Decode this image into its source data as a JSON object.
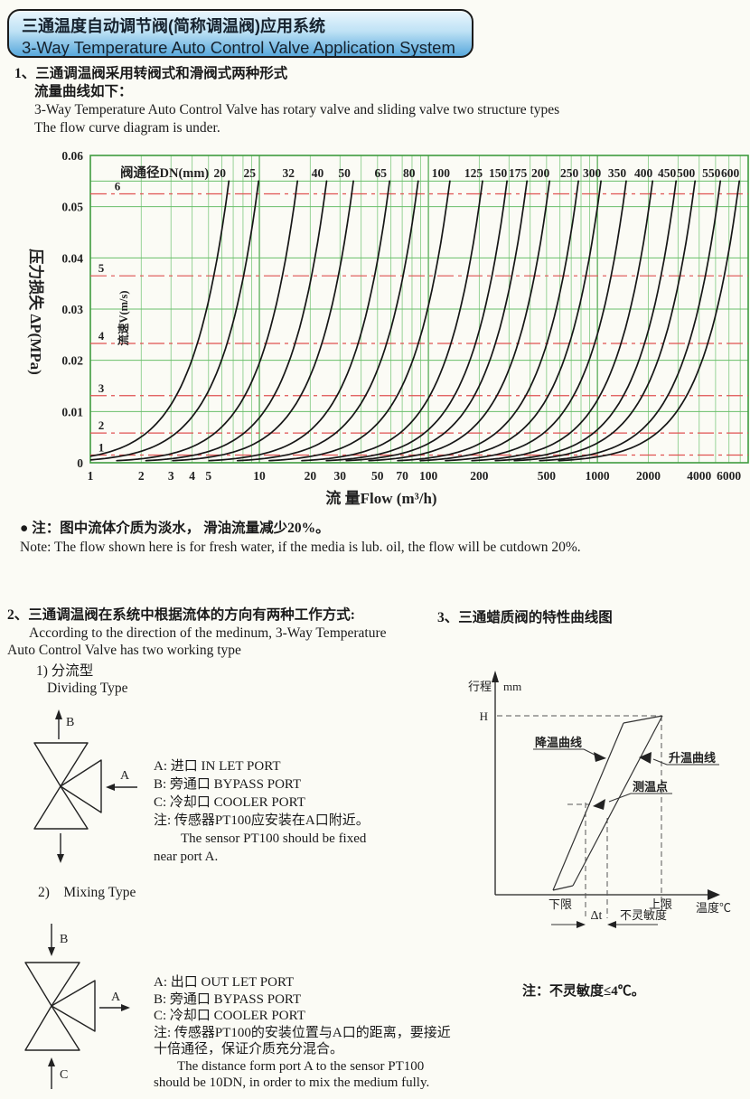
{
  "header": {
    "title_zh": "三通温度自动调节阀(简称调温阀)应用系统",
    "title_en": "3-Way Temperature Auto Control Valve Application System"
  },
  "section1": {
    "zh1": "1、三通调温阀采用转阀式和滑阀式两种形式",
    "zh2": "流量曲线如下：",
    "en1": "3-Way Temperature Auto Control Valve has rotary valve and sliding valve two structure types",
    "en2": "The flow curve diagram is under."
  },
  "chart_data": {
    "type": "line",
    "band_title": "阀通径DN(mm)",
    "xlabel": "流 量Flow (m³/h)",
    "ylabel": "压力损失 ΔP(MPa)",
    "velocity_axis_label": "流速V(m/s)",
    "x_ticks": [
      1,
      2,
      3,
      4,
      5,
      10,
      20,
      30,
      50,
      70,
      100,
      200,
      500,
      1000,
      2000,
      4000,
      6000
    ],
    "y_ticks": [
      0,
      0.01,
      0.02,
      0.03,
      0.04,
      0.05,
      0.06
    ],
    "x_range": [
      1,
      7800
    ],
    "y_range": [
      0,
      0.06
    ],
    "curve_top_dp": 0.055,
    "velocity_lines": [
      {
        "v": 1,
        "dp": 0.0015
      },
      {
        "v": 2,
        "dp": 0.0058
      },
      {
        "v": 3,
        "dp": 0.0131
      },
      {
        "v": 4,
        "dp": 0.0233
      },
      {
        "v": 5,
        "dp": 0.0365
      },
      {
        "v": 6,
        "dp": 0.0525
      }
    ],
    "series": [
      {
        "dn": 20,
        "q_max": 6.6
      },
      {
        "dn": 25,
        "q_max": 9.9
      },
      {
        "dn": 32,
        "q_max": 16.8
      },
      {
        "dn": 40,
        "q_max": 25
      },
      {
        "dn": 50,
        "q_max": 36
      },
      {
        "dn": 65,
        "q_max": 59
      },
      {
        "dn": 80,
        "q_max": 87
      },
      {
        "dn": 100,
        "q_max": 134
      },
      {
        "dn": 125,
        "q_max": 209
      },
      {
        "dn": 150,
        "q_max": 292
      },
      {
        "dn": 175,
        "q_max": 383
      },
      {
        "dn": 200,
        "q_max": 521
      },
      {
        "dn": 250,
        "q_max": 772
      },
      {
        "dn": 300,
        "q_max": 1050
      },
      {
        "dn": 350,
        "q_max": 1480
      },
      {
        "dn": 400,
        "q_max": 2120
      },
      {
        "dn": 450,
        "q_max": 2920
      },
      {
        "dn": 500,
        "q_max": 3780
      },
      {
        "dn": 550,
        "q_max": 5340
      },
      {
        "dn": 600,
        "q_max": 6910
      }
    ],
    "colors": {
      "grid": "#8ecf8e",
      "grid_major": "#4fa84f",
      "border": "#3f9b3f",
      "curve": "#161616",
      "velocity": "#e05252",
      "velocity_label": "#e02828"
    }
  },
  "note": {
    "zh": "● 注：图中流体介质为淡水， 滑油流量减少20%。",
    "en": "Note: The flow shown here is for fresh water, if the media is lub. oil, the flow will be cutdown 20%."
  },
  "section2": {
    "zh": "2、三通调温阀在系统中根据流体的方向有两种工作方式:",
    "en1": "According to the direction of the medinum, 3-Way Temperature",
    "en2": "Auto Control Valve has two working type",
    "sub1_zh": "1) 分流型",
    "sub1_en": "Dividing Type",
    "sub2": "2)    Mixing Type"
  },
  "section3": {
    "zh": "3、三通蜡质阀的特性曲线图"
  },
  "dividing": {
    "port_a": "A",
    "port_b": "B",
    "lines": [
      "A: 进口 IN LET PORT",
      "B: 旁通口 BYPASS PORT",
      "C: 冷却口 COOLER PORT",
      "注: 传感器PT100应安装在A口附近。"
    ],
    "en1": "The sensor PT100 should be fixed",
    "en2": "near port A."
  },
  "mixing": {
    "port_a": "A",
    "port_b": "B",
    "port_c": "C",
    "lines": [
      "A: 出口 OUT LET PORT",
      "B: 旁通口 BYPASS PORT",
      "C: 冷却口 COOLER PORT",
      "注: 传感器PT100的安装位置与A口的距离，要接近",
      "十倍通径，保证介质充分混合。"
    ],
    "en1": "The distance form port A to the sensor PT100",
    "en2": "should be 10DN, in order to mix the medium fully."
  },
  "wax": {
    "stroke_label": "行程",
    "stroke_unit": "mm",
    "h_label": "H",
    "cooling": "降温曲线",
    "heating": "升温曲线",
    "measure_point": "测温点",
    "lower": "下限",
    "upper": "上限",
    "delta_t": "Δt",
    "insensitivity": "不灵敏度",
    "temp_label": "温度℃",
    "note": "注：不灵敏度≤4℃。"
  }
}
